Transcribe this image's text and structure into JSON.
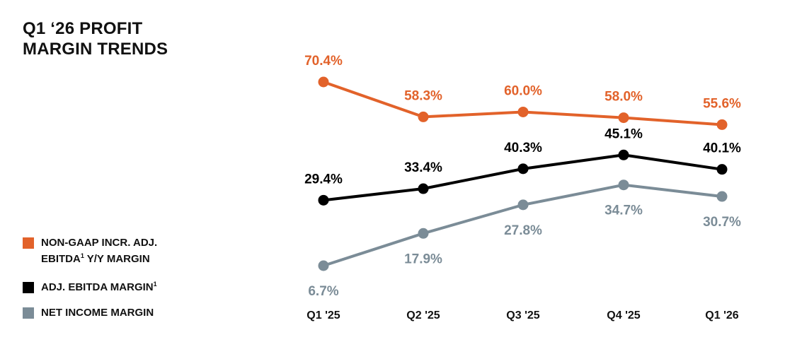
{
  "title": {
    "line1": "Q1 ‘26 PROFIT",
    "line2": "MARGIN TRENDS"
  },
  "legend": [
    {
      "line1": "NON-GAAP INCR. ADJ.",
      "line2": "EBITDA",
      "sup": "1",
      "tail": " Y/Y MARGIN",
      "color": "#e2622a"
    },
    {
      "line1": "ADJ. EBITDA MARGIN",
      "sup": "1",
      "color": "#000000"
    },
    {
      "line1": "NET INCOME MARGIN",
      "color": "#7b8c97"
    }
  ],
  "chart_data": {
    "type": "line",
    "title": "Q1 ‘26 PROFIT MARGIN TRENDS",
    "categories": [
      "Q1 '25",
      "Q2 '25",
      "Q3 '25",
      "Q4 '25",
      "Q1 '26"
    ],
    "series": [
      {
        "name": "NON-GAAP INCR. ADJ. EBITDA Y/Y MARGIN",
        "values": [
          70.4,
          58.3,
          60.0,
          58.0,
          55.6
        ],
        "labels": [
          "70.4%",
          "58.3%",
          "60.0%",
          "58.0%",
          "55.6%"
        ],
        "color": "#e2622a",
        "label_position": "above"
      },
      {
        "name": "ADJ. EBITDA MARGIN",
        "values": [
          29.4,
          33.4,
          40.3,
          45.1,
          40.1
        ],
        "labels": [
          "29.4%",
          "33.4%",
          "40.3%",
          "45.1%",
          "40.1%"
        ],
        "color": "#000000",
        "label_position": "above"
      },
      {
        "name": "NET INCOME MARGIN",
        "values": [
          6.7,
          17.9,
          27.8,
          34.7,
          30.7
        ],
        "labels": [
          "6.7%",
          "17.9%",
          "27.8%",
          "34.7%",
          "30.7%"
        ],
        "color": "#7b8c97",
        "label_position": "below"
      }
    ],
    "grid": false,
    "legend_position": "bottom-left"
  }
}
